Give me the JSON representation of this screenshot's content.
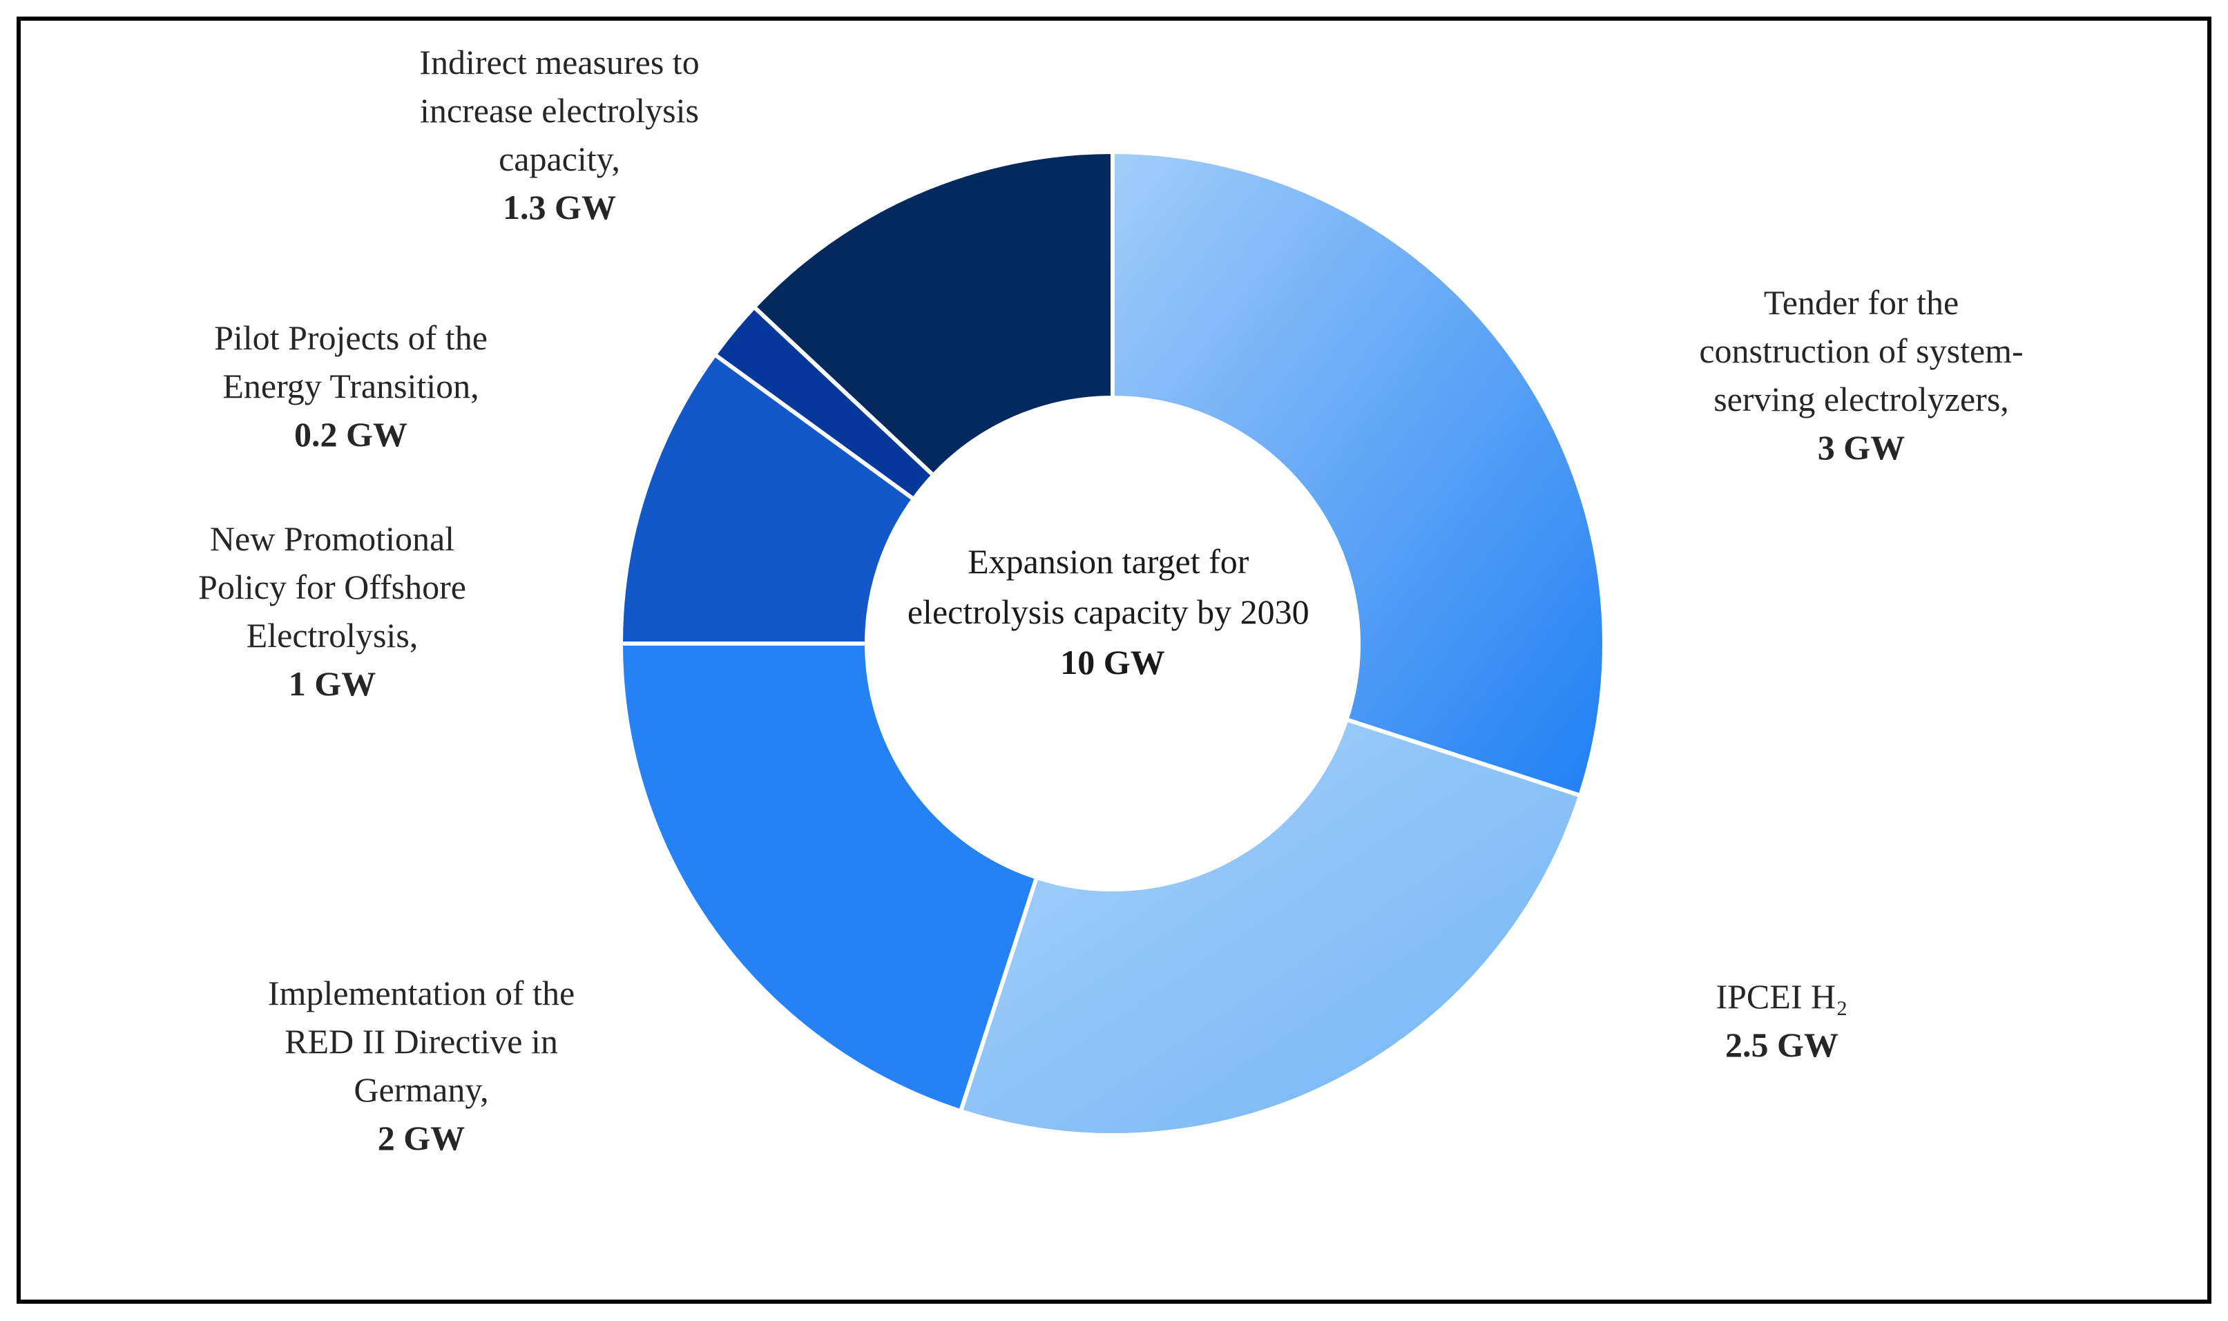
{
  "chart_data": {
    "type": "pie",
    "variant": "donut",
    "unit": "GW",
    "center": {
      "lines": [
        "Expansion target for",
        "electrolysis capacity by 2030"
      ],
      "value": "10 GW"
    },
    "slices": [
      {
        "lines": [
          "Tender for the",
          "construction of system-",
          "serving electrolyzers,"
        ],
        "value": 3,
        "value_label": "3 GW",
        "color": "#3f8ff5"
      },
      {
        "lines": [
          "IPCEI H₂"
        ],
        "value": 2.5,
        "value_label": "2.5 GW",
        "color": "#85bdf7"
      },
      {
        "lines": [
          "Implementation of the",
          "RED II Directive in",
          "Germany,"
        ],
        "value": 2,
        "value_label": "2 GW",
        "color": "#2582f5"
      },
      {
        "lines": [
          "New Promotional",
          "Policy for Offshore",
          "Electrolysis,"
        ],
        "value": 1,
        "value_label": "1 GW",
        "color": "#1358c8"
      },
      {
        "lines": [
          "Pilot Projects of the",
          "Energy Transition,"
        ],
        "value": 0.2,
        "value_label": "0.2 GW",
        "color": "#05389a"
      },
      {
        "lines": [
          "Indirect measures to",
          "increase electrolysis",
          "capacity,"
        ],
        "value": 1.3,
        "value_label": "1.3 GW",
        "color": "#04295e"
      }
    ]
  }
}
